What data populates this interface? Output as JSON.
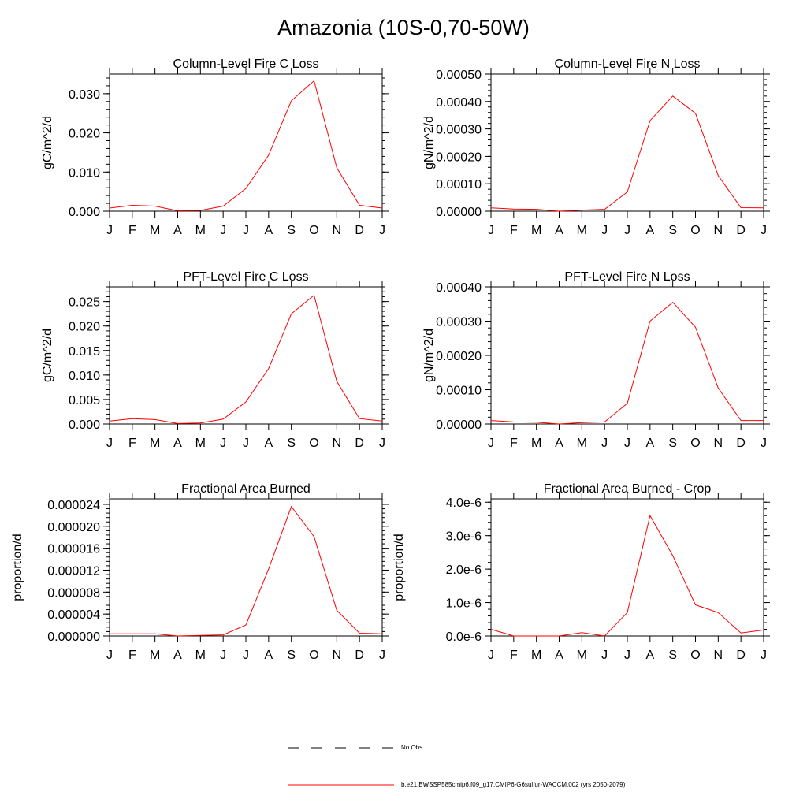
{
  "figure": {
    "title": "Amazonia (10S-0,70-50W)"
  },
  "legend": {
    "obs_label": "No Obs",
    "model_label": "b.e21.BWSSP585cmip6.f09_g17.CMIP6-G6sulfur-WACCM.002 (yrs 2050-2079)",
    "model_color": "#ff0000",
    "obs_color": "#000000"
  },
  "chart_data": [
    {
      "type": "line",
      "title": "Column-Level Fire C Loss",
      "ylabel": "gC/m^2/d",
      "categories": [
        "J",
        "F",
        "M",
        "A",
        "M",
        "J",
        "J",
        "A",
        "S",
        "O",
        "N",
        "D",
        "J"
      ],
      "ylim": [
        0,
        0.035
      ],
      "yticks": [
        "0.000",
        "0.010",
        "0.020",
        "0.030"
      ],
      "ytick_values": [
        0,
        0.01,
        0.02,
        0.03
      ],
      "series": [
        {
          "values": [
            0.0008,
            0.0015,
            0.0013,
            0.0001,
            0.0002,
            0.0013,
            0.0058,
            0.0143,
            0.0282,
            0.0333,
            0.0111,
            0.0015,
            0.0008
          ]
        }
      ]
    },
    {
      "type": "line",
      "title": "Column-Level Fire N Loss",
      "ylabel": "gN/m^2/d",
      "categories": [
        "J",
        "F",
        "M",
        "A",
        "M",
        "J",
        "J",
        "A",
        "S",
        "O",
        "N",
        "D",
        "J"
      ],
      "ylim": [
        0,
        0.0005
      ],
      "yticks": [
        "0.00000",
        "0.00010",
        "0.00020",
        "0.00030",
        "0.00040",
        "0.00050"
      ],
      "ytick_values": [
        0,
        0.0001,
        0.0002,
        0.0003,
        0.0004,
        0.0005
      ],
      "series": [
        {
          "values": [
            1.2e-05,
            8e-06,
            7e-06,
            0.0,
            4e-06,
            7e-06,
            7e-05,
            0.00033,
            0.00042,
            0.000357,
            0.00013,
            1.3e-05,
            1.2e-05
          ]
        }
      ]
    },
    {
      "type": "line",
      "title": "PFT-Level Fire C Loss",
      "ylabel": "gC/m^2/d",
      "categories": [
        "J",
        "F",
        "M",
        "A",
        "M",
        "J",
        "J",
        "A",
        "S",
        "O",
        "N",
        "D",
        "J"
      ],
      "ylim": [
        0,
        0.028
      ],
      "yticks": [
        "0.000",
        "0.005",
        "0.010",
        "0.015",
        "0.020",
        "0.025"
      ],
      "ytick_values": [
        0,
        0.005,
        0.01,
        0.015,
        0.02,
        0.025
      ],
      "series": [
        {
          "values": [
            0.0006,
            0.0011,
            0.0009,
            0.0001,
            0.0002,
            0.001,
            0.0045,
            0.0113,
            0.0225,
            0.0263,
            0.0087,
            0.0011,
            0.0006
          ]
        }
      ]
    },
    {
      "type": "line",
      "title": "PFT-Level Fire N Loss",
      "ylabel": "gN/m^2/d",
      "categories": [
        "J",
        "F",
        "M",
        "A",
        "M",
        "J",
        "J",
        "A",
        "S",
        "O",
        "N",
        "D",
        "J"
      ],
      "ylim": [
        0,
        0.0004
      ],
      "yticks": [
        "0.00000",
        "0.00010",
        "0.00020",
        "0.00030",
        "0.00040"
      ],
      "ytick_values": [
        0,
        0.0001,
        0.0002,
        0.0003,
        0.0004
      ],
      "series": [
        {
          "values": [
            1e-05,
            6e-06,
            5e-06,
            0.0,
            4e-06,
            6e-06,
            6e-05,
            0.0003,
            0.000355,
            0.000282,
            0.000105,
            1e-05,
            1e-05
          ]
        }
      ]
    },
    {
      "type": "line",
      "title": "Fractional Area Burned",
      "ylabel": "proportion/d",
      "categories": [
        "J",
        "F",
        "M",
        "A",
        "M",
        "J",
        "J",
        "A",
        "S",
        "O",
        "N",
        "D",
        "J"
      ],
      "ylim": [
        0,
        2.5e-05
      ],
      "yticks": [
        "0.000000",
        "0.000004",
        "0.000008",
        "0.000012",
        "0.000016",
        "0.000020",
        "0.000024"
      ],
      "ytick_values": [
        0,
        4e-06,
        8e-06,
        1.2e-05,
        1.6e-05,
        2e-05,
        2.4e-05
      ],
      "series": [
        {
          "values": [
            4e-07,
            4e-07,
            4e-07,
            0.0,
            1e-07,
            2e-07,
            2e-06,
            1.22e-05,
            2.36e-05,
            1.81e-05,
            4.7e-06,
            5e-07,
            4e-07
          ]
        }
      ]
    },
    {
      "type": "line",
      "title": "Fractional Area Burned - Crop",
      "ylabel": "proportion/d",
      "categories": [
        "J",
        "F",
        "M",
        "A",
        "M",
        "J",
        "J",
        "A",
        "S",
        "O",
        "N",
        "D",
        "J"
      ],
      "ylim": [
        0,
        4.1e-06
      ],
      "yticks": [
        "0.0e-6",
        "1.0e-6",
        "2.0e-6",
        "3.0e-6",
        "4.0e-6"
      ],
      "ytick_values": [
        0,
        1e-06,
        2e-06,
        3e-06,
        4e-06
      ],
      "series": [
        {
          "values": [
            2e-07,
            0.0,
            0.0,
            0.0,
            1e-07,
            0.0,
            7e-07,
            3.6e-06,
            2.4e-06,
            9.3e-07,
            7e-07,
            9e-08,
            1.8e-07
          ]
        }
      ]
    }
  ]
}
